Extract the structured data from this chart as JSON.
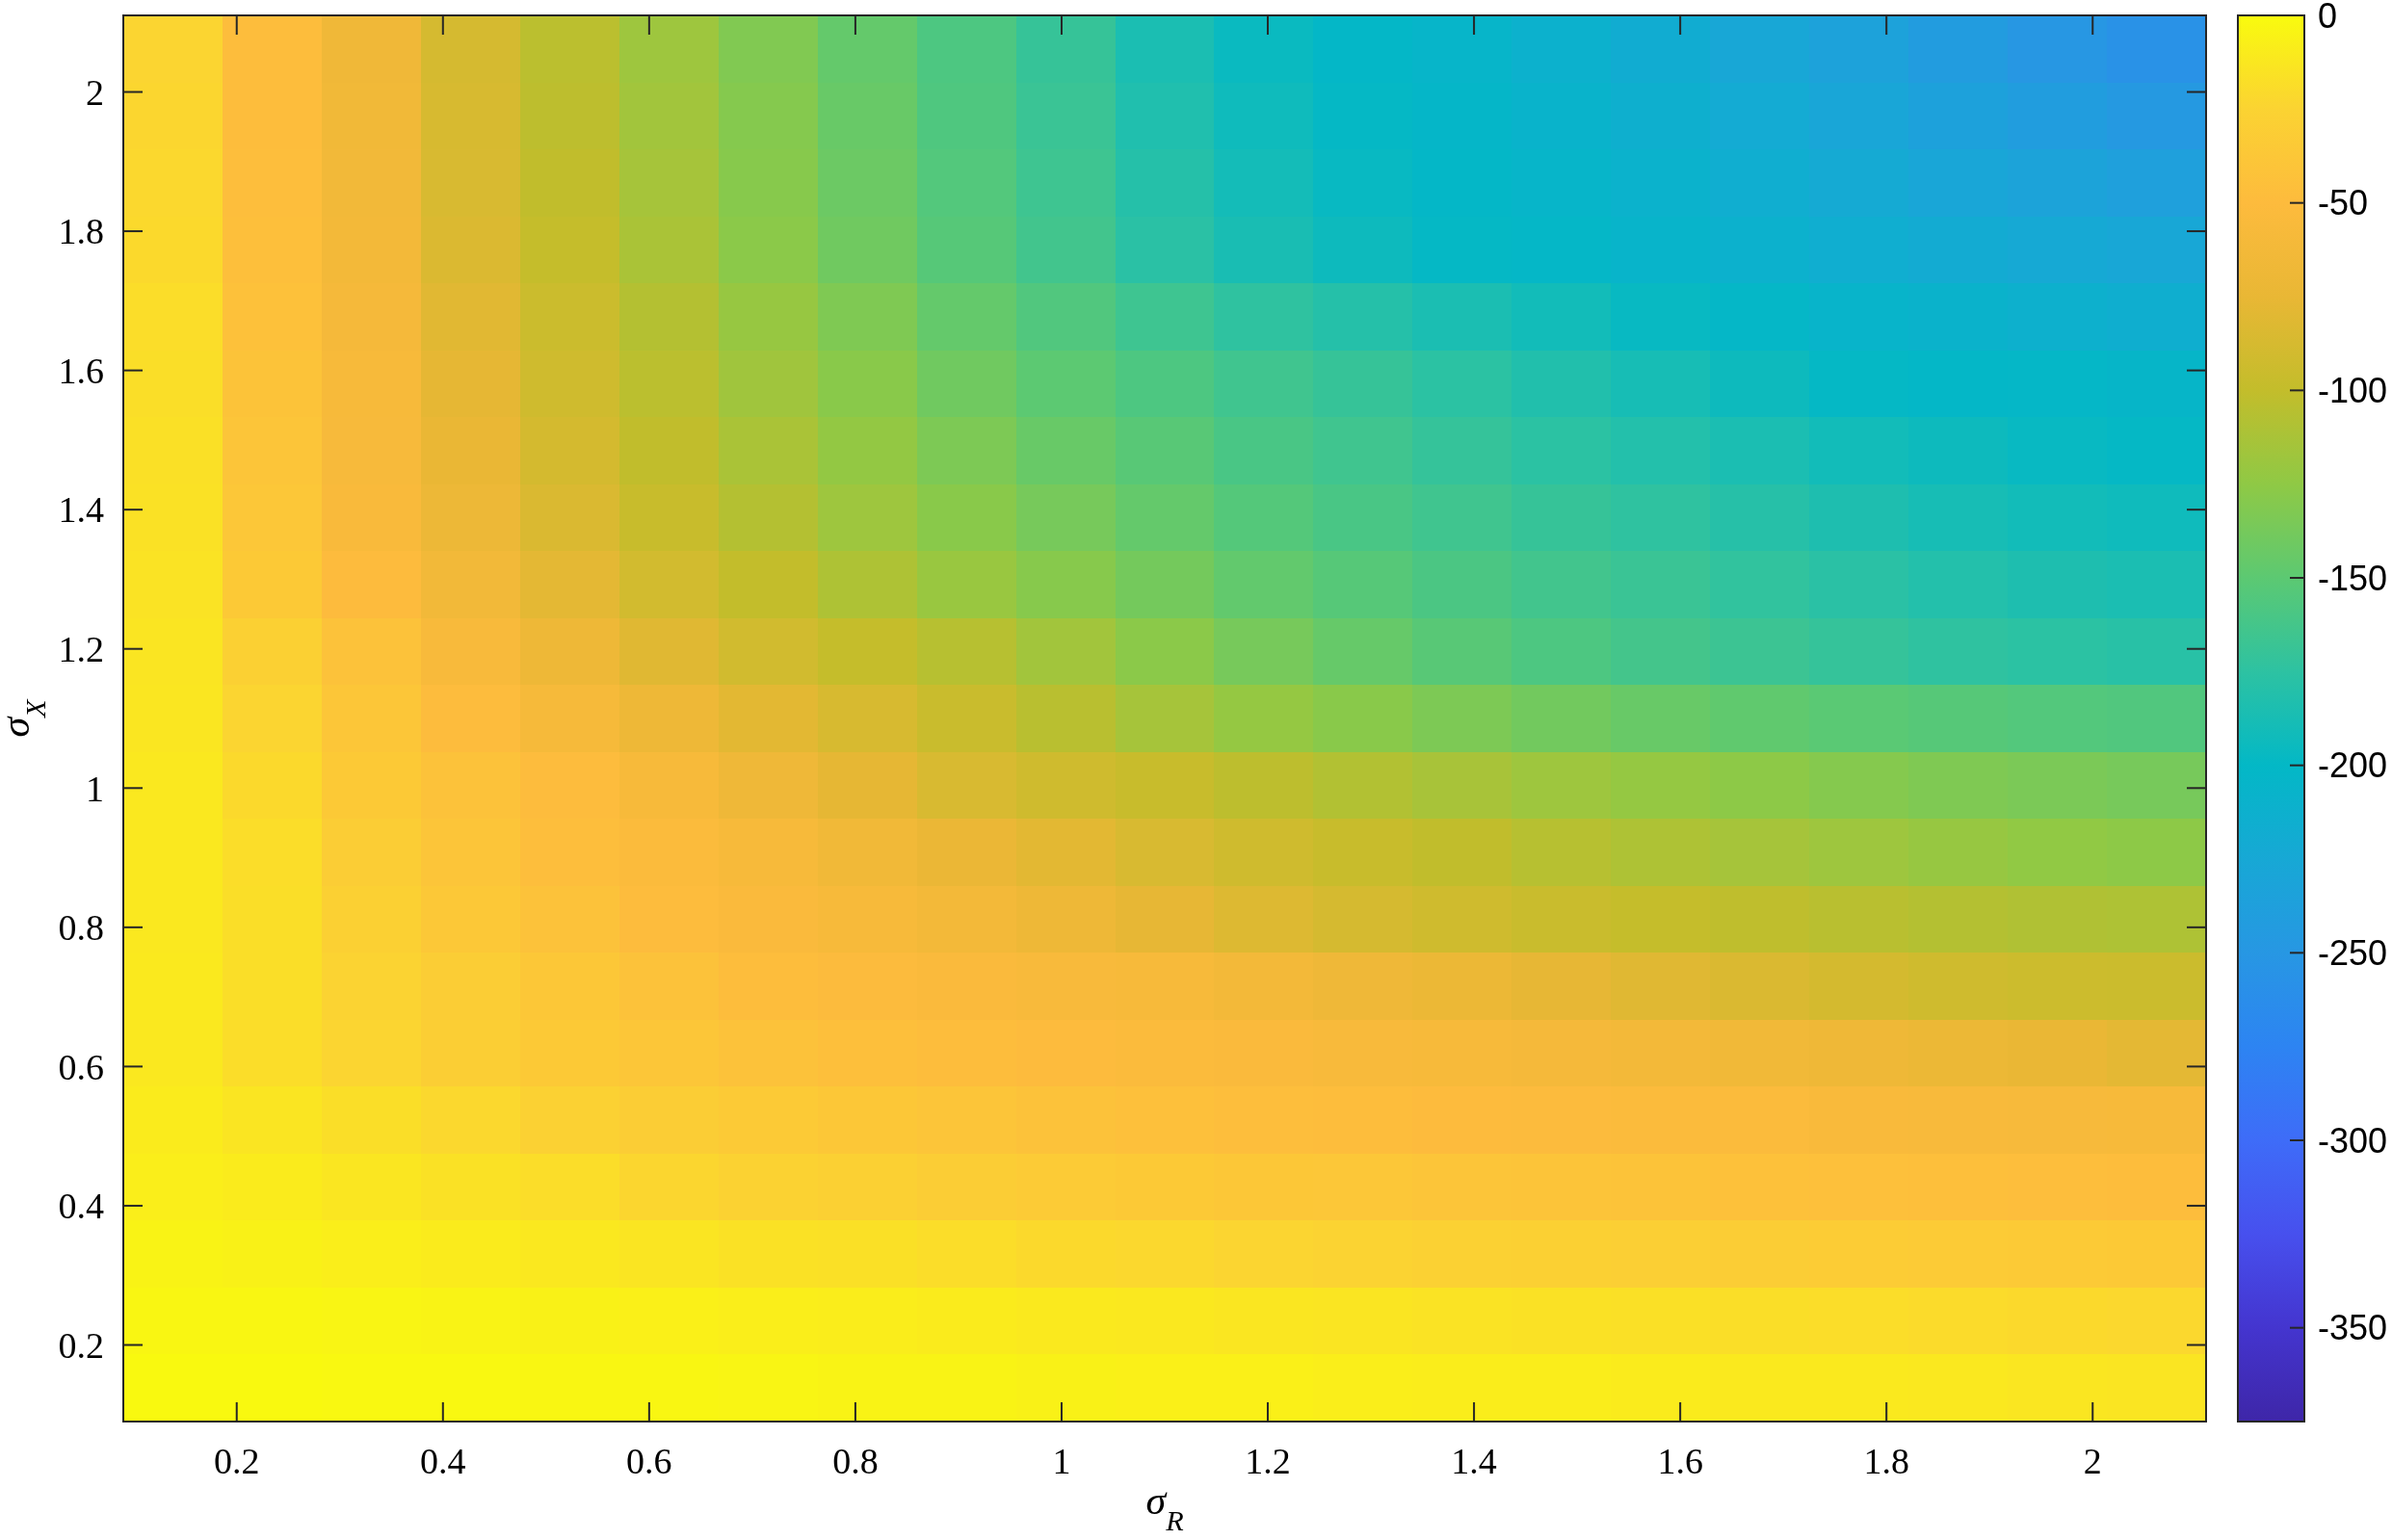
{
  "chart_data": {
    "type": "heatmap",
    "xlabel": "σ$_{R}$",
    "ylabel": "σ$_{X}$",
    "xlim": [
      0.09,
      2.11
    ],
    "ylim": [
      0.09,
      2.11
    ],
    "xticks": [
      0.2,
      0.4,
      0.6,
      0.8,
      1,
      1.2,
      1.4,
      1.6,
      1.8,
      2
    ],
    "yticks": [
      0.2,
      0.4,
      0.6,
      0.8,
      1,
      1.2,
      1.4,
      1.6,
      1.8,
      2
    ],
    "clim": [
      -375,
      0
    ],
    "cticks": [
      -350,
      -300,
      -250,
      -200,
      -150,
      -100,
      -50,
      0
    ],
    "cells": [
      [
        -24,
        -48,
        -66,
        -88,
        -104,
        -118,
        -132,
        -146,
        -158,
        -170,
        -186,
        -196,
        -201,
        -205,
        -211,
        -218,
        -226,
        -234,
        -242,
        -250,
        -257
      ],
      [
        -23,
        -48,
        -65,
        -87,
        -103,
        -116,
        -130,
        -144,
        -157,
        -168,
        -183,
        -193,
        -199,
        -203,
        -208,
        -214,
        -221,
        -228,
        -235,
        -241,
        -247
      ],
      [
        -22,
        -47,
        -64,
        -86,
        -101,
        -114,
        -129,
        -142,
        -155,
        -166,
        -180,
        -190,
        -197,
        -201,
        -205,
        -210,
        -216,
        -222,
        -228,
        -233,
        -237
      ],
      [
        -21,
        -46,
        -63,
        -84,
        -99,
        -112,
        -127,
        -140,
        -153,
        -164,
        -177,
        -187,
        -194,
        -199,
        -202,
        -206,
        -211,
        -216,
        -220,
        -224,
        -227
      ],
      [
        -19,
        -44,
        -60,
        -80,
        -95,
        -107,
        -121,
        -133,
        -146,
        -156,
        -166,
        -174,
        -180,
        -186,
        -191,
        -197,
        -202,
        -206,
        -209,
        -212,
        -215
      ],
      [
        -18,
        -42,
        -58,
        -77,
        -92,
        -104,
        -117,
        -128,
        -140,
        -150,
        -158,
        -165,
        -170,
        -176,
        -182,
        -188,
        -194,
        -199,
        -201,
        -202,
        -204
      ],
      [
        -17,
        -40,
        -57,
        -74,
        -89,
        -101,
        -112,
        -123,
        -134,
        -144,
        -152,
        -160,
        -165,
        -171,
        -176,
        -181,
        -186,
        -191,
        -194,
        -197,
        -199
      ],
      [
        -16,
        -38,
        -55,
        -70,
        -85,
        -97,
        -107,
        -118,
        -128,
        -137,
        -146,
        -154,
        -160,
        -165,
        -170,
        -174,
        -179,
        -184,
        -188,
        -191,
        -193
      ],
      [
        -15,
        -35,
        -50,
        -64,
        -78,
        -90,
        -100,
        -110,
        -120,
        -129,
        -138,
        -147,
        -153,
        -159,
        -164,
        -168,
        -173,
        -177,
        -181,
        -184,
        -186
      ],
      [
        -14,
        -28,
        -43,
        -56,
        -69,
        -81,
        -91,
        -99,
        -106,
        -116,
        -127,
        -137,
        -145,
        -152,
        -158,
        -163,
        -167,
        -171,
        -174,
        -176,
        -178
      ],
      [
        -13,
        -24,
        -39,
        -49,
        -59,
        -69,
        -79,
        -87,
        -96,
        -105,
        -114,
        -122,
        -128,
        -134,
        -139,
        -144,
        -148,
        -151,
        -153,
        -155,
        -156
      ],
      [
        -12,
        -21,
        -35,
        -43,
        -49,
        -58,
        -67,
        -77,
        -86,
        -92,
        -97,
        -103,
        -108,
        -113,
        -118,
        -122,
        -126,
        -130,
        -133,
        -135,
        -137
      ],
      [
        -12,
        -19,
        -31,
        -40,
        -47,
        -53,
        -58,
        -65,
        -72,
        -79,
        -86,
        -92,
        -97,
        -101,
        -106,
        -110,
        -114,
        -118,
        -121,
        -124,
        -126
      ],
      [
        -12,
        -18,
        -28,
        -36,
        -43,
        -49,
        -54,
        -58,
        -63,
        -69,
        -76,
        -83,
        -88,
        -92,
        -96,
        -99,
        -102,
        -105,
        -107,
        -109,
        -110
      ],
      [
        -11,
        -18,
        -25,
        -31,
        -37,
        -43,
        -48,
        -51,
        -54,
        -56,
        -58,
        -62,
        -67,
        -71,
        -76,
        -81,
        -85,
        -89,
        -92,
        -94,
        -95
      ],
      [
        -12,
        -19,
        -24,
        -30,
        -35,
        -39,
        -43,
        -46,
        -48,
        -50,
        -52,
        -54,
        -56,
        -58,
        -60,
        -62,
        -65,
        -68,
        -71,
        -74,
        -78
      ],
      [
        -10,
        -14,
        -18,
        -22,
        -27,
        -31,
        -34,
        -37,
        -40,
        -43,
        -45,
        -47,
        -48,
        -50,
        -51,
        -52,
        -53,
        -55,
        -56,
        -57,
        -58
      ],
      [
        -8,
        -10,
        -13,
        -16,
        -19,
        -23,
        -26,
        -28,
        -31,
        -33,
        -35,
        -37,
        -38,
        -40,
        -41,
        -42,
        -44,
        -45,
        -46,
        -47,
        -48
      ],
      [
        -5,
        -6,
        -8,
        -10,
        -12,
        -14,
        -16,
        -17,
        -19,
        -21,
        -22,
        -24,
        -25,
        -27,
        -28,
        -29,
        -31,
        -32,
        -33,
        -34,
        -35
      ],
      [
        -3,
        -3,
        -4,
        -5,
        -6,
        -7,
        -8,
        -9,
        -10,
        -11,
        -12,
        -13,
        -14,
        -15,
        -16,
        -17,
        -18,
        -19,
        -20,
        -21,
        -22
      ],
      [
        -1,
        -1,
        -2,
        -2,
        -3,
        -3,
        -4,
        -5,
        -5,
        -6,
        -7,
        -7,
        -8,
        -9,
        -9,
        -10,
        -11,
        -11,
        -12,
        -13,
        -14
      ]
    ]
  }
}
